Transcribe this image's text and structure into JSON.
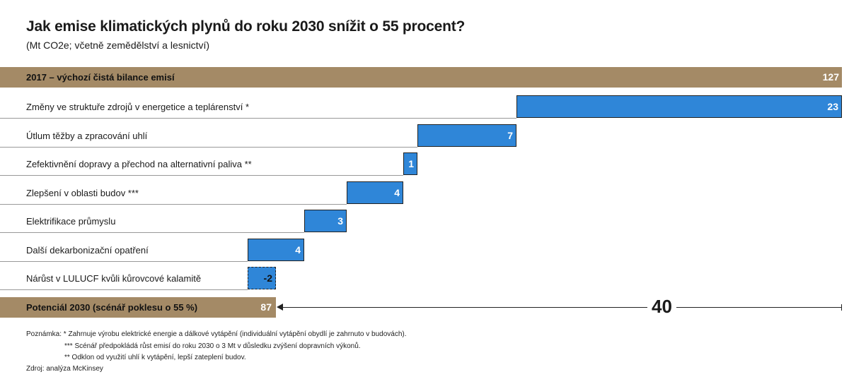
{
  "title": "Jak emise klimatických plynů do roku 2030 snížit o 55 procent?",
  "subtitle": "(Mt CO2e; včetně zemědělství a lesnictví)",
  "chart_data": {
    "type": "bar",
    "subtype": "waterfall",
    "start": {
      "label": "2017 – výchozí čistá bilance emisí",
      "value": 127
    },
    "end": {
      "label": "Potenciál 2030 (scénář poklesu o 55 %)",
      "value": 87
    },
    "steps": [
      {
        "label": "Změny ve struktuře zdrojů v energetice a teplárenství *",
        "value": 23,
        "value_label": "23"
      },
      {
        "label": "Útlum těžby a zpracování uhlí",
        "value": 7,
        "value_label": "7"
      },
      {
        "label": "Zefektivnění dopravy a přechod na alternativní paliva **",
        "value": 1,
        "value_label": "1"
      },
      {
        "label": "Zlepšení v oblasti budov ***",
        "value": 4,
        "value_label": "4"
      },
      {
        "label": "Elektrifikace průmyslu",
        "value": 3,
        "value_label": "3"
      },
      {
        "label": "Další dekarbonizační opatření",
        "value": 4,
        "value_label": "4"
      },
      {
        "label": "Nárůst v LULUCF kvůli kůrovcové kalamitě",
        "value": -2,
        "value_label": "-2"
      }
    ],
    "total_reduction": "40",
    "colors": {
      "band": "#a48a66",
      "bar": "#2f86d8"
    }
  },
  "notes": {
    "line1": "Poznámka: * Zahrnuje výrobu elektrické energie a dálkové vytápění (individuální vytápění obydlí je zahrnuto v budovách).",
    "line2": "*** Scénář předpokládá růst emisí do roku 2030 o 3 Mt v důsledku zvýšení dopravních výkonů.",
    "line3": "** Odklon od využití uhlí k vytápění, lepší zateplení budov.",
    "source": "Zdroj: analýza McKinsey"
  }
}
